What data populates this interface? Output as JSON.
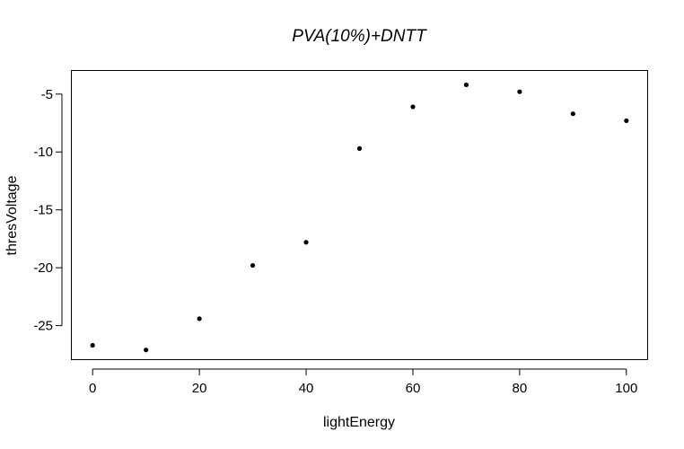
{
  "chart_data": {
    "type": "scatter",
    "title": "PVA(10%)+DNTT",
    "xlabel": "lightEnergy",
    "ylabel": "thresVoltage",
    "x": [
      0,
      10,
      20,
      30,
      40,
      50,
      60,
      70,
      80,
      90,
      100
    ],
    "y": [
      -26.7,
      -27.1,
      -24.4,
      -19.8,
      -17.8,
      -9.7,
      -6.1,
      -4.2,
      -4.8,
      -6.7,
      -7.3
    ],
    "xlim": [
      -3.9,
      103.9
    ],
    "ylim": [
      -27.9,
      -3.0
    ],
    "xticks": [
      0,
      20,
      40,
      60,
      80,
      100
    ],
    "yticks": [
      -25,
      -20,
      -15,
      -10,
      -5
    ],
    "point_color": "#000000",
    "grid": false,
    "legend": "none"
  }
}
